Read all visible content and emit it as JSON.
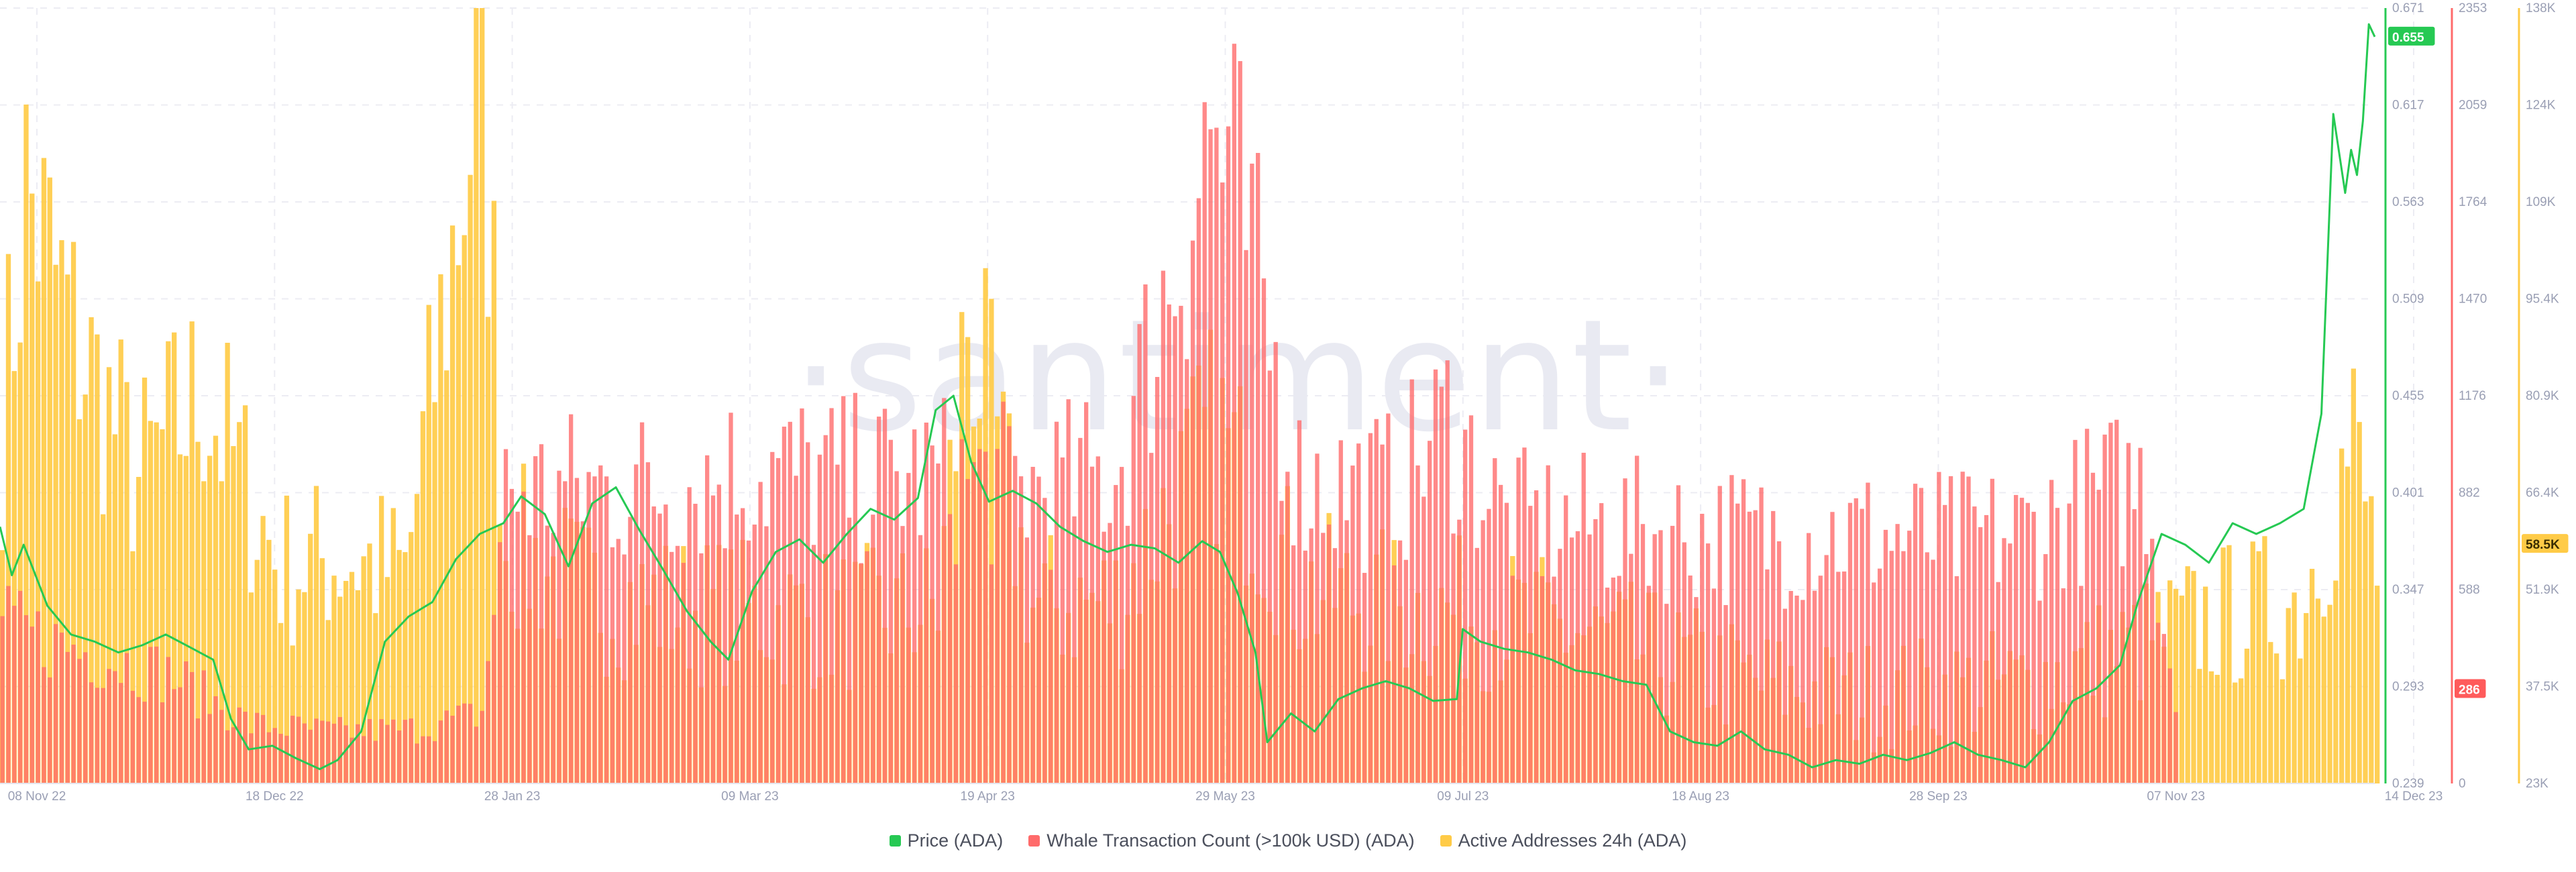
{
  "chart_data": {
    "type": "bar+line",
    "title": "",
    "watermark": "santiment",
    "x_ticks": [
      "08 Nov 22",
      "18 Dec 22",
      "28 Jan 23",
      "09 Mar 23",
      "19 Apr 23",
      "29 May 23",
      "09 Jul 23",
      "18 Aug 23",
      "28 Sep 23",
      "07 Nov 23",
      "14 Dec 23"
    ],
    "x_range": [
      "2022-11-08",
      "2023-12-14"
    ],
    "axes": {
      "price": {
        "ticks": [
          "0.671",
          "0.617",
          "0.563",
          "0.509",
          "0.455",
          "0.401",
          "0.347",
          "0.293",
          "0.239"
        ],
        "range": [
          0.239,
          0.671
        ],
        "color": "#26c953"
      },
      "whale": {
        "ticks": [
          "2353",
          "2059",
          "1764",
          "1470",
          "1176",
          "882",
          "588",
          "294",
          "0"
        ],
        "range": [
          0,
          2353
        ],
        "color": "#ff5b5b"
      },
      "active": {
        "ticks": [
          "138K",
          "124K",
          "109K",
          "95.4K",
          "80.9K",
          "66.4K",
          "51.9K",
          "37.5K",
          "23K"
        ],
        "range": [
          23000,
          138000
        ],
        "color": "#ffcb47"
      }
    },
    "current_badges": {
      "price": "0.655",
      "whale": "286",
      "active": "58.5K"
    },
    "grid": true,
    "legend_position": "bottom-center",
    "series": [
      {
        "name": "Price (ADA)",
        "type": "line",
        "color": "#26c953",
        "points": [
          [
            "2022-11-08",
            0.382
          ],
          [
            "2022-11-10",
            0.355
          ],
          [
            "2022-11-12",
            0.372
          ],
          [
            "2022-11-16",
            0.338
          ],
          [
            "2022-11-20",
            0.322
          ],
          [
            "2022-11-24",
            0.318
          ],
          [
            "2022-11-28",
            0.312
          ],
          [
            "2022-12-02",
            0.316
          ],
          [
            "2022-12-06",
            0.322
          ],
          [
            "2022-12-10",
            0.315
          ],
          [
            "2022-12-14",
            0.308
          ],
          [
            "2022-12-17",
            0.275
          ],
          [
            "2022-12-20",
            0.258
          ],
          [
            "2022-12-24",
            0.26
          ],
          [
            "2022-12-28",
            0.253
          ],
          [
            "2023-01-01",
            0.247
          ],
          [
            "2023-01-04",
            0.252
          ],
          [
            "2023-01-08",
            0.268
          ],
          [
            "2023-01-12",
            0.318
          ],
          [
            "2023-01-16",
            0.332
          ],
          [
            "2023-01-20",
            0.34
          ],
          [
            "2023-01-24",
            0.364
          ],
          [
            "2023-01-28",
            0.378
          ],
          [
            "2023-02-01",
            0.384
          ],
          [
            "2023-02-04",
            0.399
          ],
          [
            "2023-02-08",
            0.389
          ],
          [
            "2023-02-12",
            0.36
          ],
          [
            "2023-02-16",
            0.395
          ],
          [
            "2023-02-20",
            0.404
          ],
          [
            "2023-02-24",
            0.38
          ],
          [
            "2023-02-28",
            0.358
          ],
          [
            "2023-03-04",
            0.335
          ],
          [
            "2023-03-08",
            0.318
          ],
          [
            "2023-03-11",
            0.308
          ],
          [
            "2023-03-15",
            0.346
          ],
          [
            "2023-03-19",
            0.368
          ],
          [
            "2023-03-23",
            0.375
          ],
          [
            "2023-03-27",
            0.362
          ],
          [
            "2023-03-31",
            0.378
          ],
          [
            "2023-04-04",
            0.392
          ],
          [
            "2023-04-08",
            0.386
          ],
          [
            "2023-04-12",
            0.398
          ],
          [
            "2023-04-15",
            0.447
          ],
          [
            "2023-04-18",
            0.455
          ],
          [
            "2023-04-21",
            0.418
          ],
          [
            "2023-04-24",
            0.396
          ],
          [
            "2023-04-28",
            0.402
          ],
          [
            "2023-05-02",
            0.395
          ],
          [
            "2023-05-06",
            0.382
          ],
          [
            "2023-05-10",
            0.374
          ],
          [
            "2023-05-14",
            0.368
          ],
          [
            "2023-05-18",
            0.372
          ],
          [
            "2023-05-22",
            0.37
          ],
          [
            "2023-05-26",
            0.362
          ],
          [
            "2023-05-30",
            0.374
          ],
          [
            "2023-06-02",
            0.368
          ],
          [
            "2023-06-05",
            0.345
          ],
          [
            "2023-06-08",
            0.312
          ],
          [
            "2023-06-10",
            0.262
          ],
          [
            "2023-06-14",
            0.278
          ],
          [
            "2023-06-18",
            0.268
          ],
          [
            "2023-06-22",
            0.286
          ],
          [
            "2023-06-26",
            0.292
          ],
          [
            "2023-06-30",
            0.296
          ],
          [
            "2023-07-04",
            0.292
          ],
          [
            "2023-07-08",
            0.285
          ],
          [
            "2023-07-12",
            0.286
          ],
          [
            "2023-07-13",
            0.325
          ],
          [
            "2023-07-16",
            0.318
          ],
          [
            "2023-07-20",
            0.314
          ],
          [
            "2023-07-24",
            0.312
          ],
          [
            "2023-07-28",
            0.308
          ],
          [
            "2023-08-01",
            0.302
          ],
          [
            "2023-08-05",
            0.3
          ],
          [
            "2023-08-09",
            0.296
          ],
          [
            "2023-08-13",
            0.294
          ],
          [
            "2023-08-17",
            0.268
          ],
          [
            "2023-08-21",
            0.262
          ],
          [
            "2023-08-25",
            0.26
          ],
          [
            "2023-08-29",
            0.268
          ],
          [
            "2023-09-02",
            0.258
          ],
          [
            "2023-09-06",
            0.255
          ],
          [
            "2023-09-10",
            0.248
          ],
          [
            "2023-09-14",
            0.252
          ],
          [
            "2023-09-18",
            0.25
          ],
          [
            "2023-09-22",
            0.255
          ],
          [
            "2023-09-26",
            0.252
          ],
          [
            "2023-09-30",
            0.256
          ],
          [
            "2023-10-04",
            0.262
          ],
          [
            "2023-10-08",
            0.255
          ],
          [
            "2023-10-12",
            0.252
          ],
          [
            "2023-10-16",
            0.248
          ],
          [
            "2023-10-20",
            0.262
          ],
          [
            "2023-10-24",
            0.285
          ],
          [
            "2023-10-28",
            0.292
          ],
          [
            "2023-11-01",
            0.305
          ],
          [
            "2023-11-04",
            0.34
          ],
          [
            "2023-11-08",
            0.378
          ],
          [
            "2023-11-12",
            0.372
          ],
          [
            "2023-11-16",
            0.362
          ],
          [
            "2023-11-20",
            0.384
          ],
          [
            "2023-11-24",
            0.378
          ],
          [
            "2023-11-28",
            0.384
          ],
          [
            "2023-12-02",
            0.392
          ],
          [
            "2023-12-05",
            0.445
          ],
          [
            "2023-12-07",
            0.612
          ],
          [
            "2023-12-09",
            0.568
          ],
          [
            "2023-12-10",
            0.592
          ],
          [
            "2023-12-11",
            0.578
          ],
          [
            "2023-12-12",
            0.608
          ],
          [
            "2023-12-13",
            0.662
          ],
          [
            "2023-12-14",
            0.655
          ]
        ]
      },
      {
        "name": "Whale Transaction Count (>100k USD) (ADA)",
        "type": "bar",
        "color": "#ff6b6b",
        "points": [
          [
            "2022-11-08",
            560
          ],
          [
            "2022-11-22",
            470
          ],
          [
            "2022-12-06",
            390
          ],
          [
            "2022-12-20",
            210
          ],
          [
            "2023-01-03",
            185
          ],
          [
            "2023-01-17",
            195
          ],
          [
            "2023-01-28",
            250
          ],
          [
            "2023-02-01",
            1040
          ],
          [
            "2023-02-15",
            1050
          ],
          [
            "2023-03-01",
            1060
          ],
          [
            "2023-03-15",
            1120
          ],
          [
            "2023-04-01",
            1080
          ],
          [
            "2023-04-15",
            1090
          ],
          [
            "2023-05-01",
            1050
          ],
          [
            "2023-05-15",
            1100
          ],
          [
            "2023-05-31",
            2330
          ],
          [
            "2023-06-04",
            2140
          ],
          [
            "2023-06-15",
            1080
          ],
          [
            "2023-07-01",
            1040
          ],
          [
            "2023-07-10",
            1290
          ],
          [
            "2023-07-20",
            930
          ],
          [
            "2023-08-01",
            920
          ],
          [
            "2023-08-15",
            900
          ],
          [
            "2023-09-01",
            880
          ],
          [
            "2023-09-15",
            890
          ],
          [
            "2023-10-01",
            870
          ],
          [
            "2023-10-15",
            890
          ],
          [
            "2023-10-28",
            1020
          ],
          [
            "2023-11-05",
            1080
          ],
          [
            "2023-11-10",
            286
          ]
        ]
      },
      {
        "name": "Active Addresses 24h (ADA)",
        "type": "bar",
        "color": "#ffcb47",
        "points": [
          [
            "2022-11-08",
            80000
          ],
          [
            "2022-11-12",
            118000
          ],
          [
            "2022-11-20",
            95000
          ],
          [
            "2022-12-01",
            72000
          ],
          [
            "2022-12-12",
            86000
          ],
          [
            "2022-12-25",
            58000
          ],
          [
            "2023-01-05",
            60000
          ],
          [
            "2023-01-15",
            57000
          ],
          [
            "2023-01-28",
            139000
          ],
          [
            "2023-02-01",
            62000
          ],
          [
            "2023-02-15",
            54000
          ],
          [
            "2023-03-01",
            52000
          ],
          [
            "2023-03-15",
            51000
          ],
          [
            "2023-04-01",
            50000
          ],
          [
            "2023-04-15",
            52000
          ],
          [
            "2023-04-20",
            98000
          ],
          [
            "2023-05-01",
            52000
          ],
          [
            "2023-05-15",
            53000
          ],
          [
            "2023-06-01",
            80000
          ],
          [
            "2023-06-15",
            55000
          ],
          [
            "2023-07-01",
            52000
          ],
          [
            "2023-07-15",
            51000
          ],
          [
            "2023-08-01",
            48000
          ],
          [
            "2023-08-15",
            44000
          ],
          [
            "2023-09-01",
            40000
          ],
          [
            "2023-09-15",
            38000
          ],
          [
            "2023-10-01",
            39000
          ],
          [
            "2023-10-15",
            40000
          ],
          [
            "2023-11-01",
            45000
          ],
          [
            "2023-11-15",
            50000
          ],
          [
            "2023-12-01",
            53000
          ],
          [
            "2023-12-10",
            78000
          ],
          [
            "2023-12-14",
            58500
          ]
        ]
      }
    ]
  }
}
